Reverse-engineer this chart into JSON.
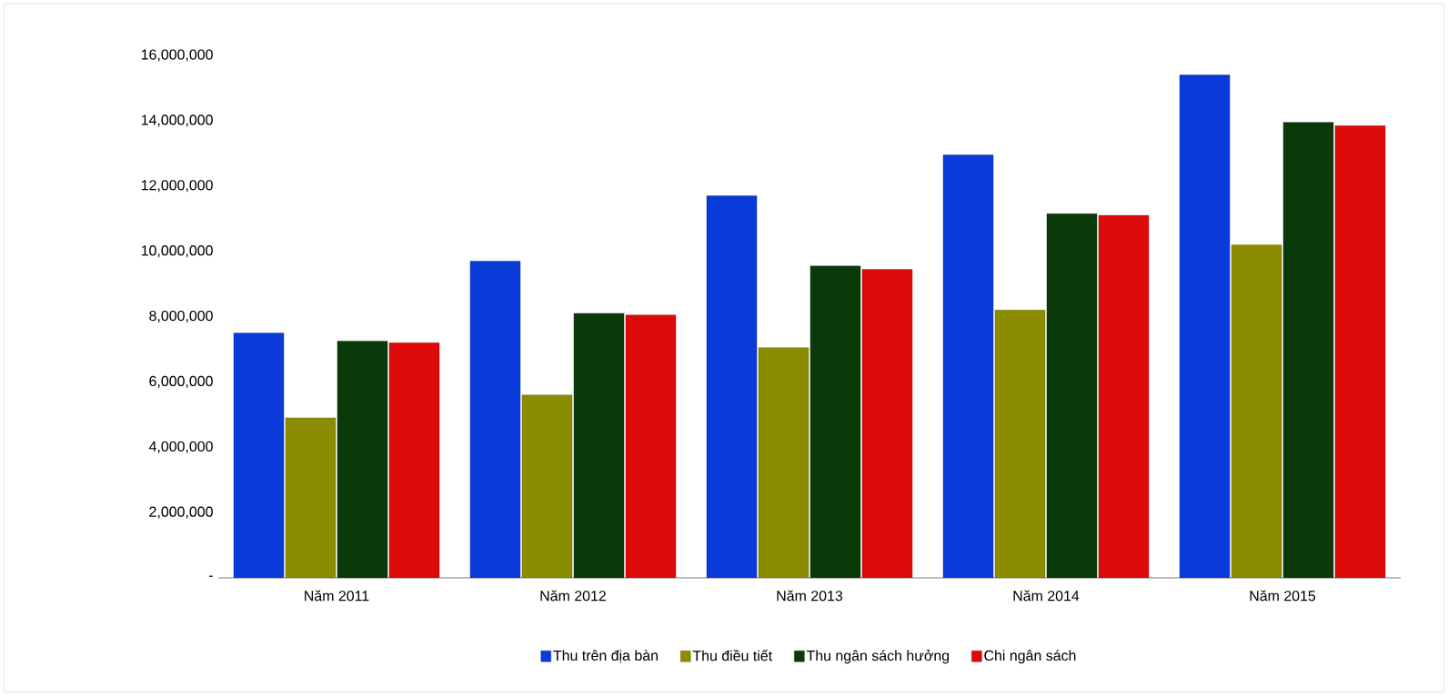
{
  "chart_data": {
    "type": "bar",
    "categories": [
      "Năm 2011",
      "Năm 2012",
      "Năm 2013",
      "Năm 2014",
      "Năm 2015"
    ],
    "series": [
      {
        "name": "Thu trên địa bàn",
        "color": "#0a3ad8",
        "values": [
          7500000,
          9700000,
          11700000,
          12950000,
          15400000
        ]
      },
      {
        "name": "Thu điều tiết",
        "color": "#8c8c00",
        "values": [
          4900000,
          5600000,
          7050000,
          8200000,
          10200000
        ]
      },
      {
        "name": "Thu ngân sách hưởng",
        "color": "#0a3a0a",
        "values": [
          7250000,
          8100000,
          9550000,
          11150000,
          13950000
        ]
      },
      {
        "name": "Chi ngân sách",
        "color": "#dd0a0a",
        "values": [
          7200000,
          8050000,
          9450000,
          11100000,
          13850000
        ]
      }
    ],
    "ylim": [
      0,
      16000000
    ],
    "yticks": [
      {
        "value": 0,
        "label": "-"
      },
      {
        "value": 2000000,
        "label": "2,000,000"
      },
      {
        "value": 4000000,
        "label": "4,000,000"
      },
      {
        "value": 6000000,
        "label": "6,000,000"
      },
      {
        "value": 8000000,
        "label": "8,000,000"
      },
      {
        "value": 10000000,
        "label": "10,000,000"
      },
      {
        "value": 12000000,
        "label": "12,000,000"
      },
      {
        "value": 14000000,
        "label": "14,000,000"
      },
      {
        "value": 16000000,
        "label": "16,000,000"
      }
    ],
    "legend": "bottom"
  }
}
